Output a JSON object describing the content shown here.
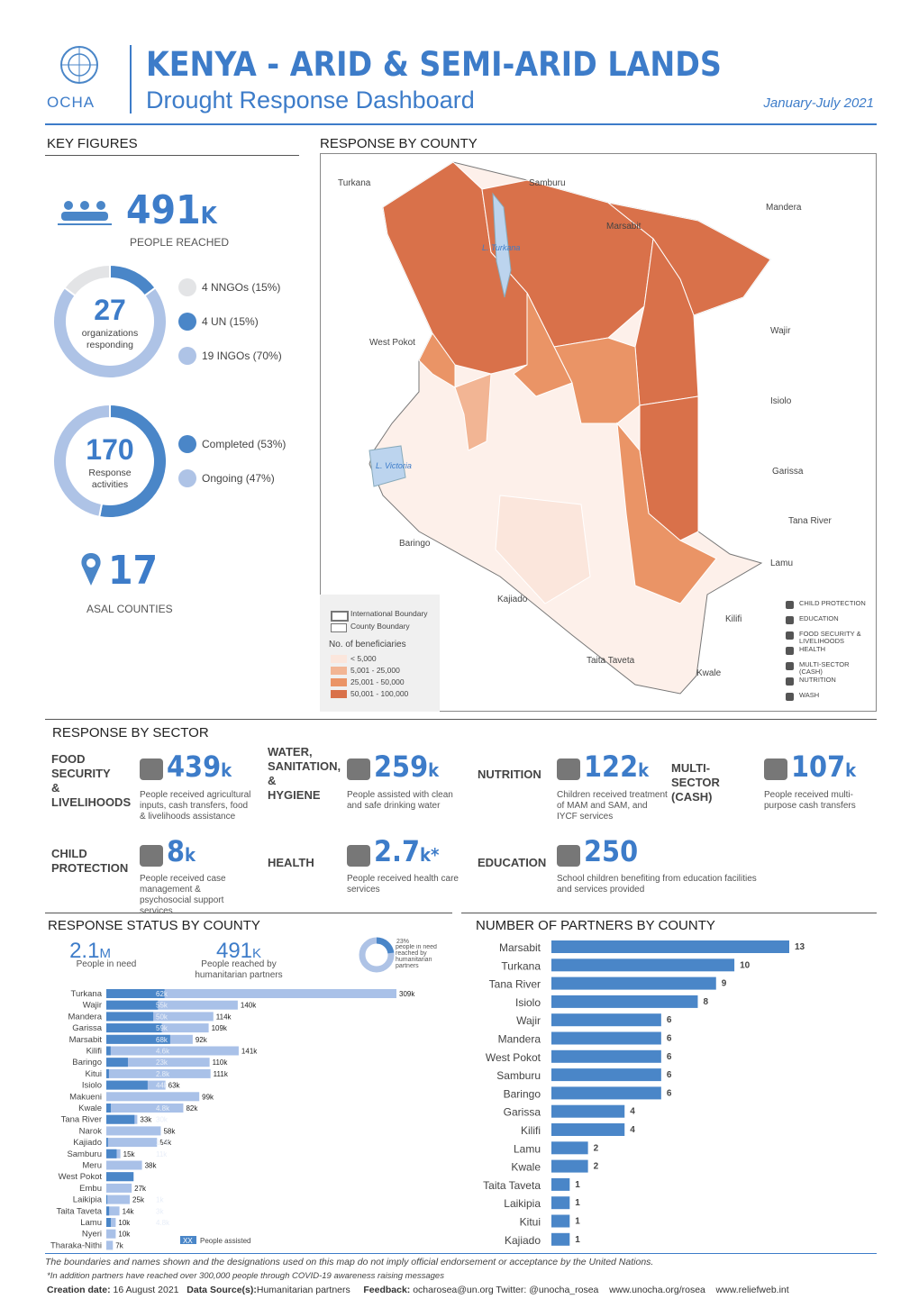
{
  "header": {
    "org": "OCHA",
    "title": "KENYA - ARID & SEMI-ARID LANDS",
    "subtitle": "Drought Response Dashboard",
    "period": "January-July 2021"
  },
  "key_figures": {
    "heading": "KEY FIGURES",
    "people_reached": {
      "value": "491",
      "unit": "K",
      "label": "PEOPLE REACHED"
    },
    "counties": {
      "value": "17",
      "label": "ASAL COUNTIES"
    }
  },
  "map": {
    "heading": "RESPONSE BY COUNTY",
    "counties": [
      "Turkana",
      "Samburu",
      "Mandera",
      "Marsabit",
      "West Pokot",
      "Wajir",
      "Isiolo",
      "Garissa",
      "Tana River",
      "Baringo",
      "Lamu",
      "Kajiado",
      "Kilifi",
      "Taita Taveta",
      "Kwale"
    ],
    "lakes": [
      "L. Turkana",
      "L. Victoria"
    ],
    "legend": {
      "boundaries": [
        "International Boundary",
        "County Boundary"
      ],
      "beneficiaries_title": "No. of beneficiaries",
      "classes": [
        "< 5,000",
        "5,001 - 25,000",
        "25,001 - 50,000",
        "50,001 - 100,000"
      ],
      "class_colors": [
        "#fbe6dc",
        "#f2b594",
        "#ea9466",
        "#d9714a"
      ]
    },
    "sectors_legend": [
      "CHILD PROTECTION",
      "EDUCATION",
      "FOOD SECURITY & LIVELIHOODS",
      "HEALTH",
      "MULTI-SECTOR (CASH)",
      "NUTRITION",
      "WASH"
    ]
  },
  "sectors": {
    "heading": "RESPONSE BY SECTOR",
    "items": [
      {
        "name": "FOOD SECURITY & LIVELIHOODS",
        "value": "439",
        "unit": "k",
        "text": "People received agricultural inputs, cash transfers, food & livelihoods assistance"
      },
      {
        "name": "WATER, SANITATION, & HYGIENE",
        "value": "259",
        "unit": "k",
        "text": "People assisted with clean and safe drinking water"
      },
      {
        "name": "NUTRITION",
        "value": "122",
        "unit": "k",
        "text": "Children received treatment of MAM and SAM, and IYCF services"
      },
      {
        "name": "MULTI-SECTOR (CASH)",
        "value": "107",
        "unit": "k",
        "text": "People received multi-purpose cash transfers"
      },
      {
        "name": "CHILD PROTECTION",
        "value": "8",
        "unit": "k",
        "text": "People received case management & psychosocial support services"
      },
      {
        "name": "HEALTH",
        "value": "2.7",
        "unit": "k*",
        "text": "People received health care services"
      },
      {
        "name": "EDUCATION",
        "value": "250",
        "unit": "",
        "text": "School children benefiting from education facilities and services provided"
      }
    ]
  },
  "status_summary": {
    "need": {
      "value": "2.1",
      "unit": "M",
      "label": "People in need"
    },
    "reached": {
      "value": "491",
      "unit": "K",
      "label": "People reached by humanitarian partners"
    },
    "pct": {
      "value": 23,
      "label": "23%",
      "text": "people in need reached by humanitarian partners"
    }
  },
  "chart_data": [
    {
      "type": "pie",
      "total": 27,
      "total_label": "organizations responding",
      "categories": [
        "4 NNGOs (15%)",
        "4 UN (15%)",
        "19 INGOs (70%)"
      ],
      "values": [
        4,
        4,
        19
      ],
      "colors": [
        "#e3e4e6",
        "#4a86c8",
        "#aec3e6"
      ]
    },
    {
      "type": "pie",
      "total": 170,
      "total_label": "Response activities",
      "categories": [
        "Completed (53%)",
        "Ongoing (47%)"
      ],
      "values": [
        53,
        47
      ],
      "colors": [
        "#4a86c8",
        "#aec3e6"
      ]
    },
    {
      "type": "hbar",
      "title": "RESPONSE STATUS BY COUNTY",
      "categories": [
        "Turkana",
        "Wajir",
        "Mandera",
        "Garissa",
        "Marsabit",
        "Kilifi",
        "Baringo",
        "Kitui",
        "Isiolo",
        "Makueni",
        "Kwale",
        "Tana River",
        "Narok",
        "Kajiado",
        "Samburu",
        "Meru",
        "West Pokot",
        "Embu",
        "Laikipia",
        "Taita Taveta",
        "Lamu",
        "Nyeri",
        "Tharaka-Nithi"
      ],
      "series": [
        {
          "name": "People in need",
          "color": "#a9c1e8",
          "values": [
            309,
            140,
            114,
            109,
            92,
            141,
            110,
            111,
            63,
            99,
            82,
            33,
            58,
            54,
            15,
            38,
            29,
            27,
            25,
            14,
            10,
            10,
            7
          ],
          "value_labels": [
            "309k",
            "140k",
            "114k",
            "109k",
            "92k",
            "141k",
            "110k",
            "111k",
            "63k",
            "99k",
            "82k",
            "33k",
            "58k",
            "54k",
            "15k",
            "38k",
            null,
            "27k",
            "25k",
            "14k",
            "10k",
            "10k",
            "7k"
          ]
        },
        {
          "name": "People assisted",
          "color": "#4a86c8",
          "values": [
            62,
            55,
            50,
            59,
            68,
            4.6,
            23,
            2.8,
            44,
            null,
            4.8,
            30,
            null,
            1.7,
            11,
            null,
            29,
            null,
            1,
            3,
            4.8,
            null,
            null
          ],
          "value_labels": [
            "62k",
            "55k",
            "50k",
            "59k",
            "68k",
            "4.6k",
            "23k",
            "2.8k",
            "44k",
            null,
            "4.8k",
            "30k",
            null,
            "1.7k",
            "11k",
            null,
            null,
            null,
            "1k",
            "3k",
            "4.8k",
            null,
            null
          ]
        }
      ],
      "legend_swatch": "XX"
    },
    {
      "type": "hbar",
      "title": "NUMBER OF PARTNERS BY COUNTY",
      "color": "#4a86c8",
      "categories": [
        "Marsabit",
        "Turkana",
        "Tana River",
        "Isiolo",
        "Wajir",
        "Mandera",
        "West Pokot",
        "Samburu",
        "Baringo",
        "Garissa",
        "Kilifi",
        "Lamu",
        "Kwale",
        "Taita Taveta",
        "Laikipia",
        "Kitui",
        "Kajiado"
      ],
      "values": [
        13,
        10,
        9,
        8,
        6,
        6,
        6,
        6,
        6,
        4,
        4,
        2,
        2,
        1,
        1,
        1,
        1
      ]
    }
  ],
  "footer": {
    "disclaimer": "The boundaries and names shown and the designations used on this map do not imply official endorsement or acceptance by the United Nations.",
    "note": "*In addition partners have reached over 300,000 people through COVID-19 awareness raising messages",
    "creation_label": "Creation date:",
    "creation_date": "16 August 2021",
    "source_label": "Data Source(s):",
    "source": "Humanitarian partners",
    "feedback_label": "Feedback:",
    "feedback": "ocharosea@un.org",
    "twitter": "Twitter: @unocha_rosea",
    "links": [
      "www.unocha.org/rosea",
      "www.reliefweb.int"
    ]
  }
}
